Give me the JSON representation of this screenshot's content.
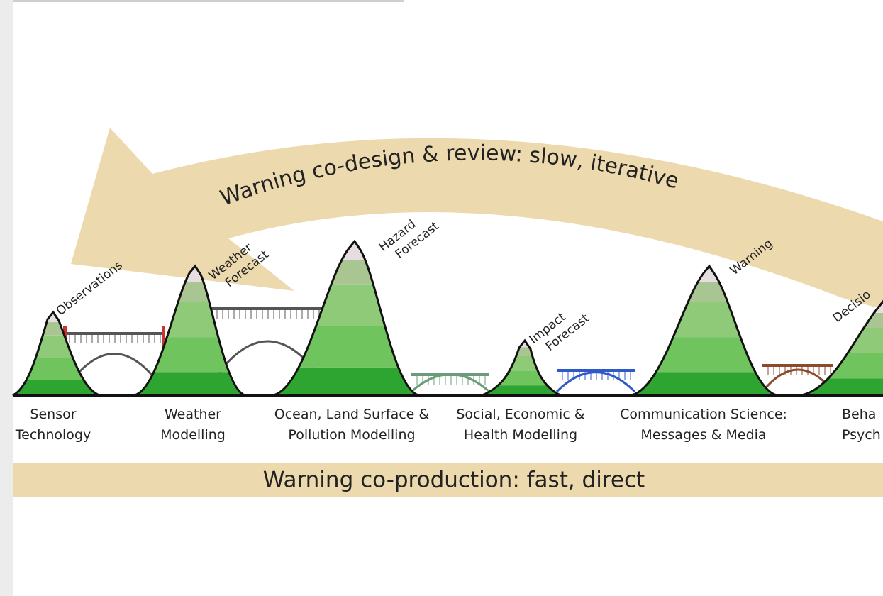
{
  "top_arrow": {
    "label": "Warning co-design & review: slow, iterative"
  },
  "peaks": [
    {
      "lines": [
        "Observations"
      ]
    },
    {
      "lines": [
        "Weather",
        "Forecast"
      ]
    },
    {
      "lines": [
        "Hazard",
        "Forecast"
      ]
    },
    {
      "lines": [
        "Impact",
        "Forecast"
      ]
    },
    {
      "lines": [
        "Warning"
      ]
    },
    {
      "lines": [
        "Decisio"
      ]
    }
  ],
  "base_labels": [
    {
      "lines": [
        "Sensor",
        "Technology"
      ]
    },
    {
      "lines": [
        "Weather",
        "Modelling"
      ]
    },
    {
      "lines": [
        "Ocean, Land Surface &",
        "Pollution Modelling"
      ]
    },
    {
      "lines": [
        "Social, Economic &",
        "Health Modelling"
      ]
    },
    {
      "lines": [
        "Communication Science:",
        "Messages & Media"
      ]
    },
    {
      "lines": [
        "Beha",
        "Psych"
      ]
    }
  ],
  "bottom_bar": {
    "label": "Warning co-production: fast, direct"
  }
}
